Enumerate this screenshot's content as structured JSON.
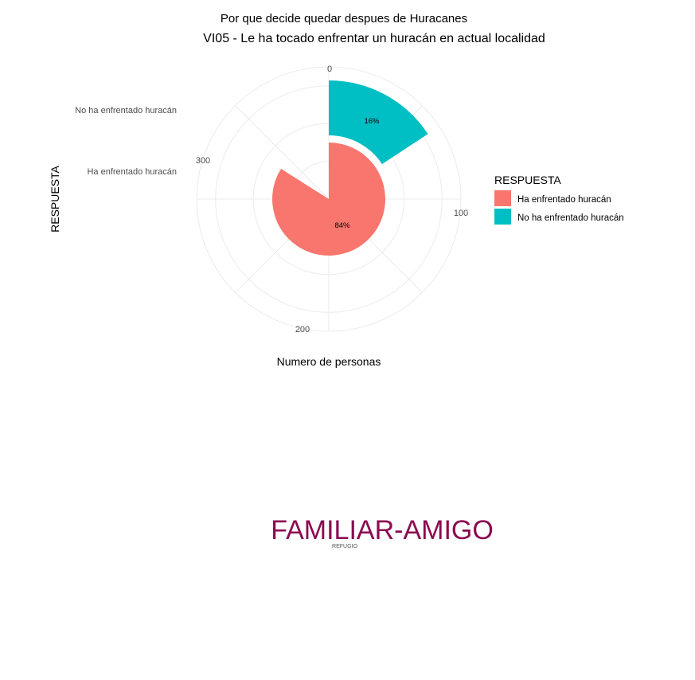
{
  "chart_data": {
    "type": "bar",
    "subtitle": "Por que decide quedar despues de  Huracanes",
    "title": "VI05 - Le ha tocado enfrentar un huracán en actual localidad",
    "xlabel": "RESPUESTA",
    "ylabel": "Numero de personas",
    "categories": [
      "No ha enfrentado huracán",
      "Ha enfrentado huracán"
    ],
    "values": [
      63,
      336
    ],
    "percent_labels": [
      "16%",
      "84%"
    ],
    "radial_ticks": [
      "0",
      "100",
      "200",
      "300"
    ],
    "yrange": [
      0,
      400
    ],
    "legend": {
      "title": "RESPUESTA",
      "position": "right",
      "entries": [
        "Ha enfrentado huracán",
        "No ha enfrentado huracán"
      ]
    },
    "colors": {
      "Ha enfrentado huracán": "#F8766D",
      "No ha enfrentado huracán": "#00BFC4"
    },
    "grid": true
  },
  "wordcloud": {
    "words": [
      {
        "text": "FAMILIAR-AMIGO",
        "color": "#8B0A50"
      },
      {
        "text": "REFUGIO",
        "color": "#555555"
      }
    ]
  }
}
